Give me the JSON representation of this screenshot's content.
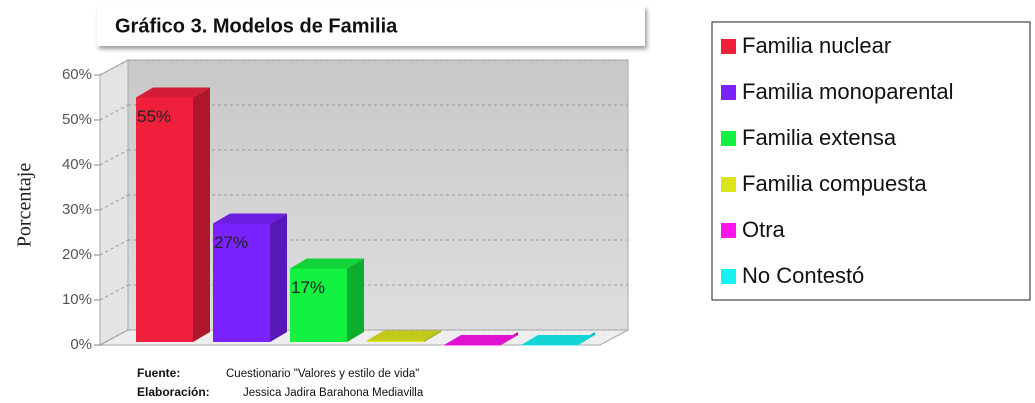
{
  "chart_data": {
    "type": "bar3d",
    "title": "Gráfico 3. Modelos de Familia",
    "y_label": "Porcentaje",
    "categories": [
      "Familia nuclear",
      "Familia monoparental",
      "Familia extensa",
      "Familia compuesta",
      "Otra",
      "No Contestó"
    ],
    "values": [
      55,
      27,
      17,
      1,
      0,
      0
    ],
    "value_labels": [
      "55%",
      "27%",
      "17%",
      null,
      null,
      null
    ],
    "colors": [
      "#f0203c",
      "#7a22ff",
      "#12f040",
      "#dce41c",
      "#ff14ee",
      "#16f2f2"
    ],
    "ylim": [
      0,
      60
    ],
    "yticks": [
      {
        "value": 0,
        "label": "0%"
      },
      {
        "value": 10,
        "label": "10%"
      },
      {
        "value": 20,
        "label": "20%"
      },
      {
        "value": 30,
        "label": "30%"
      },
      {
        "value": 40,
        "label": "40%"
      },
      {
        "value": 50,
        "label": "50%"
      },
      {
        "value": 60,
        "label": "60%"
      }
    ],
    "grid": true,
    "legend": "right",
    "source_label": "Fuente:",
    "source": "Cuestionario \"Valores y estilo de vida\"",
    "author_label": "Elaboración:",
    "author": "Jessica Jadira Barahona Mediavilla"
  }
}
